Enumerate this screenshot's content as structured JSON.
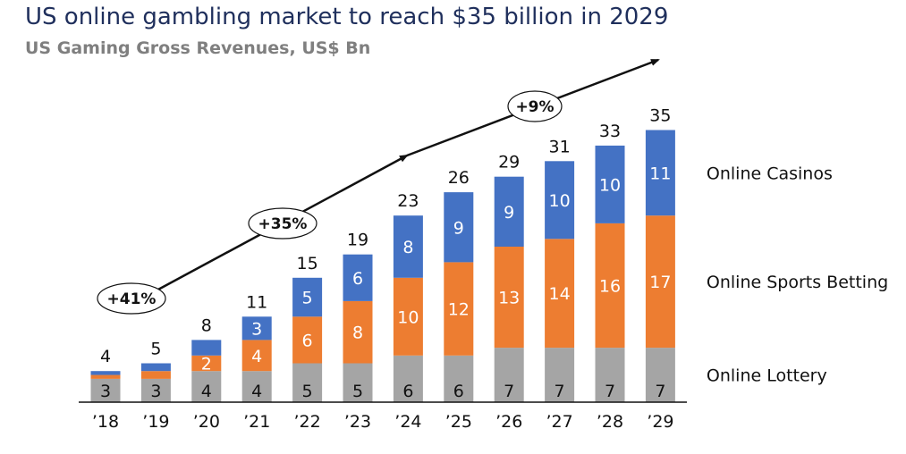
{
  "header": {
    "title": "US online gambling market to reach $35 billion in 2029",
    "subtitle": "US Gaming Gross Revenues, US$ Bn"
  },
  "chart_data": {
    "type": "bar",
    "stacked": true,
    "title": "US online gambling market to reach $35 billion in 2029",
    "subtitle": "US Gaming Gross Revenues, US$ Bn",
    "categories": [
      "’18",
      "’19",
      "’20",
      "’21",
      "’22",
      "’23",
      "’24",
      "’25",
      "’26",
      "’27",
      "’28",
      "’29"
    ],
    "series": [
      {
        "name": "Online Lottery",
        "color": "#a5a5a5",
        "values": [
          3,
          3,
          4,
          4,
          5,
          5,
          6,
          6,
          7,
          7,
          7,
          7
        ],
        "labels": [
          "3",
          "3",
          "4",
          "4",
          "5",
          "5",
          "6",
          "6",
          "7",
          "7",
          "7",
          "7"
        ]
      },
      {
        "name": "Online Sports Betting",
        "color": "#ed7d31",
        "values": [
          0.5,
          1,
          2,
          4,
          6,
          8,
          10,
          12,
          13,
          14,
          16,
          17
        ],
        "labels": [
          "",
          "",
          "2",
          "4",
          "6",
          "8",
          "10",
          "12",
          "13",
          "14",
          "16",
          "17"
        ]
      },
      {
        "name": "Online Casinos",
        "color": "#4472c4",
        "values": [
          0.5,
          1,
          2,
          3,
          5,
          6,
          8,
          9,
          9,
          10,
          10,
          11
        ],
        "labels": [
          "",
          "",
          "",
          "3",
          "5",
          "6",
          "8",
          "9",
          "9",
          "10",
          "10",
          "11"
        ]
      }
    ],
    "totals": [
      4,
      5,
      8,
      11,
      15,
      19,
      23,
      26,
      29,
      31,
      33,
      35
    ],
    "total_labels": [
      "4",
      "5",
      "8",
      "11",
      "15",
      "19",
      "23",
      "26",
      "29",
      "31",
      "33",
      "35"
    ],
    "annotations": [
      "+41%",
      "+35%",
      "+9%"
    ],
    "legend": "right, labels beside top bar",
    "ylim": [
      0,
      35
    ],
    "grid": false
  }
}
